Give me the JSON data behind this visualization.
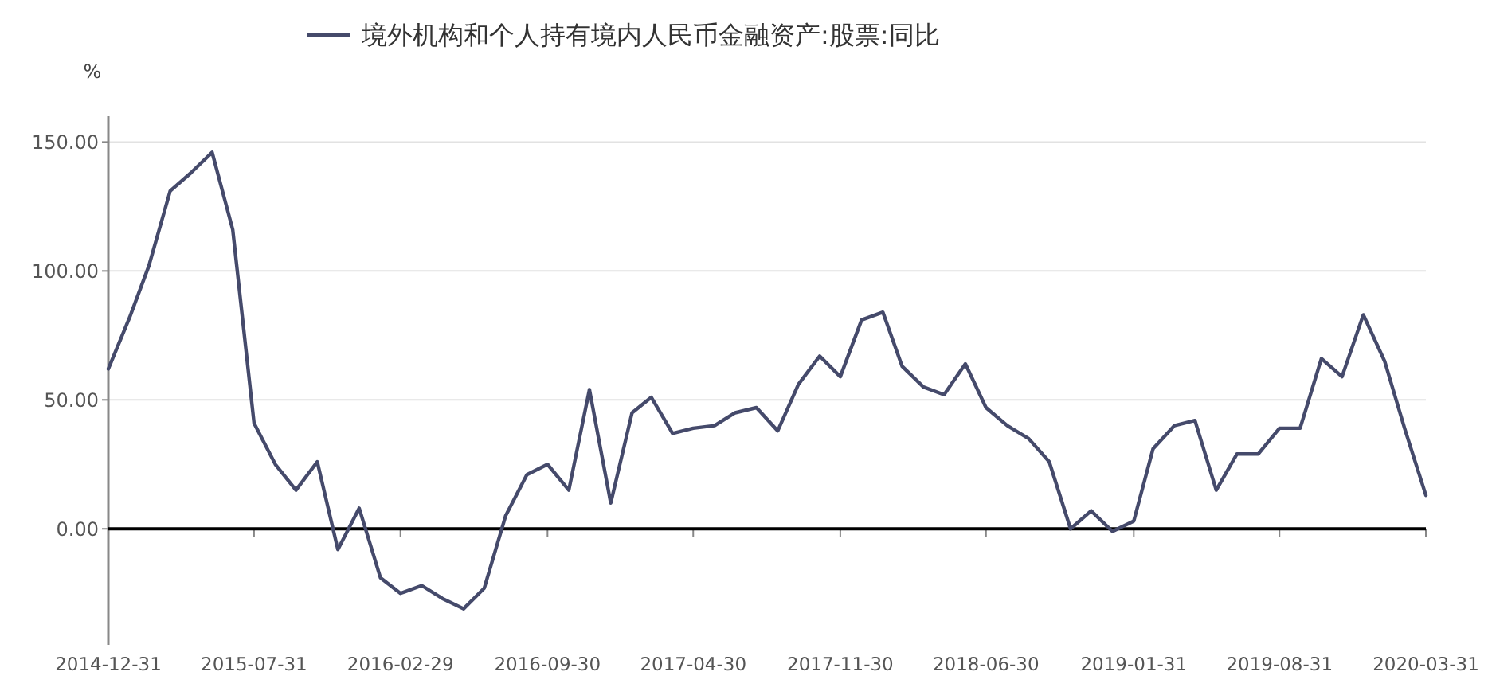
{
  "chart_data": {
    "type": "line",
    "ylabel": "%",
    "legend": "top",
    "grid": "y",
    "marker": "none",
    "line_style": "solid",
    "x": [
      "2014-12-31",
      "2015-01-31",
      "2015-02-28",
      "2015-03-31",
      "2015-04-30",
      "2015-05-31",
      "2015-06-30",
      "2015-07-31",
      "2015-08-31",
      "2015-09-30",
      "2015-10-31",
      "2015-11-30",
      "2015-12-31",
      "2016-01-31",
      "2016-02-29",
      "2016-03-31",
      "2016-04-30",
      "2016-05-31",
      "2016-06-30",
      "2016-07-31",
      "2016-08-31",
      "2016-09-30",
      "2016-10-31",
      "2016-11-30",
      "2016-12-31",
      "2017-01-31",
      "2017-02-28",
      "2017-03-31",
      "2017-04-30",
      "2017-05-31",
      "2017-06-30",
      "2017-07-31",
      "2017-08-31",
      "2017-09-30",
      "2017-10-31",
      "2017-11-30",
      "2017-12-31",
      "2018-01-31",
      "2018-02-28",
      "2018-03-31",
      "2018-04-30",
      "2018-05-31",
      "2018-06-30",
      "2018-07-31",
      "2018-08-31",
      "2018-09-30",
      "2018-10-31",
      "2018-11-30",
      "2018-12-31",
      "2019-01-31",
      "2019-02-28",
      "2019-03-31",
      "2019-04-30",
      "2019-05-31",
      "2019-06-30",
      "2019-07-31",
      "2019-08-31",
      "2019-09-30",
      "2019-10-31",
      "2019-11-30",
      "2019-12-31",
      "2020-01-31",
      "2020-02-29",
      "2020-03-31"
    ],
    "series": [
      {
        "name": "境外机构和个人持有境内人民币金融资产:股票:同比",
        "color": "#454a6b",
        "values": [
          62,
          82,
          102,
          131,
          138,
          146,
          116,
          41,
          25,
          15,
          26,
          -8,
          8,
          -19,
          -25,
          -22,
          -27,
          -31,
          -23,
          5,
          21,
          25,
          15,
          54,
          10,
          45,
          51,
          37,
          39,
          40,
          45,
          47,
          38,
          56,
          67,
          59,
          81,
          84,
          63,
          55,
          52,
          64,
          47,
          40,
          35,
          26,
          0,
          7,
          -1,
          3,
          31,
          40,
          42,
          15,
          29,
          29,
          39,
          39,
          66,
          59,
          83,
          65,
          39,
          13
        ]
      }
    ],
    "xlim": [
      "2014-12-31",
      "2020-03-31"
    ],
    "xticks": [
      "2014-12-31",
      "2015-07-31",
      "2016-02-29",
      "2016-09-30",
      "2017-04-30",
      "2017-11-30",
      "2018-06-30",
      "2019-01-31",
      "2019-08-31",
      "2020-03-31"
    ],
    "ylim": [
      -45,
      160
    ],
    "yticks": [
      {
        "value": 0,
        "label": "0.00"
      },
      {
        "value": 50,
        "label": "50.00"
      },
      {
        "value": 100,
        "label": "100.00"
      },
      {
        "value": 150,
        "label": "150.00"
      }
    ],
    "ref_lines": [
      {
        "axis": "y",
        "value": 0,
        "color": "#000000"
      }
    ]
  }
}
